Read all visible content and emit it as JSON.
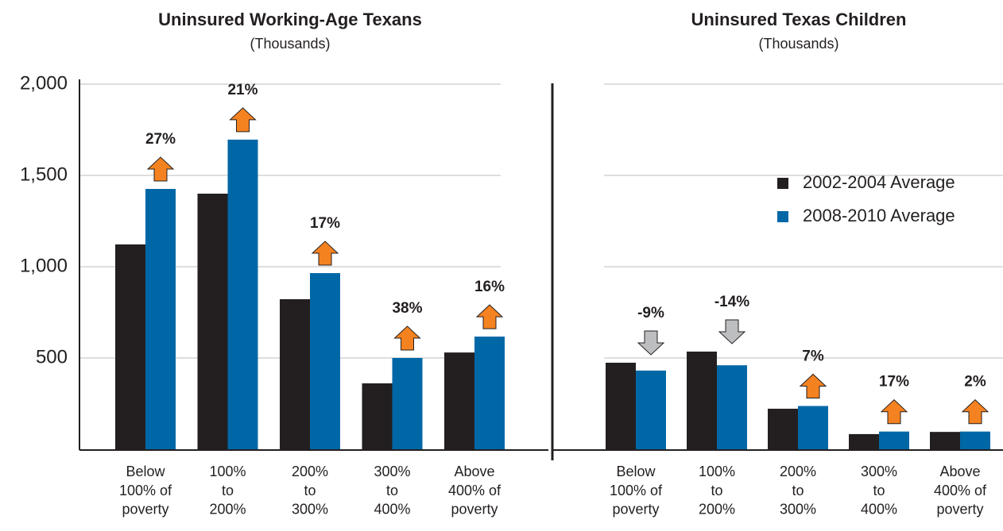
{
  "chart_data": [
    {
      "type": "bar",
      "title": "Uninsured Working-Age Texans",
      "subtitle": "(Thousands)",
      "categories": [
        "Below\n100% of\npoverty",
        "100%\nto\n200%",
        "200%\nto\n300%",
        "300%\nto\n400%",
        "Above\n400% of\npoverty"
      ],
      "series": [
        {
          "name": "2002-2004 Average",
          "color": "#231f20",
          "values": [
            1122,
            1400,
            822,
            361,
            530
          ]
        },
        {
          "name": "2008-2010 Average",
          "color": "#0067a6",
          "values": [
            1426,
            1696,
            965,
            500,
            617
          ]
        }
      ],
      "change_labels": [
        "27%",
        "21%",
        "17%",
        "38%",
        "16%"
      ],
      "ylim": [
        0,
        2000
      ],
      "yticks": [
        {
          "value": 500,
          "label": "500"
        },
        {
          "value": 1000,
          "label": "1,000"
        },
        {
          "value": 1500,
          "label": "1,500"
        },
        {
          "value": 2000,
          "label": "2,000"
        }
      ],
      "grid": true
    },
    {
      "type": "bar",
      "title": "Uninsured Texas Children",
      "subtitle": "(Thousands)",
      "categories": [
        "Below\n100% of\npoverty",
        "100%\nto\n200%",
        "200%\nto\n300%",
        "300%\nto\n400%",
        "Above\n400% of\npoverty"
      ],
      "series": [
        {
          "name": "2002-2004 Average",
          "color": "#231f20",
          "values": [
            474,
            535,
            222,
            83,
            95
          ]
        },
        {
          "name": "2008-2010 Average",
          "color": "#0067a6",
          "values": [
            431,
            460,
            237,
            97,
            97
          ]
        }
      ],
      "change_labels": [
        "-9%",
        "-14%",
        "7%",
        "17%",
        "2%"
      ],
      "ylim": [
        0,
        2000
      ],
      "legend": "right"
    }
  ]
}
